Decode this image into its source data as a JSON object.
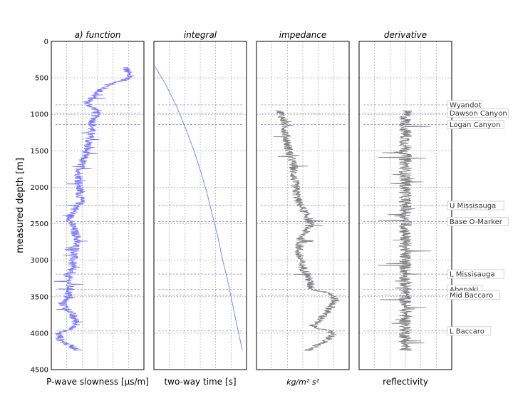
{
  "chart_data": {
    "type": "line",
    "ylabel": "measured depth [m]",
    "ylim": [
      0,
      4500
    ],
    "yticks": [
      0,
      500,
      1000,
      1500,
      2000,
      2500,
      3000,
      3500,
      4000,
      4500
    ],
    "depth_range": [
      350,
      4240
    ],
    "grid": true,
    "panels": [
      {
        "title": "a) function",
        "xlabel": "P-wave slowness [μs/m]",
        "color": "#7777ff",
        "series": {
          "name": "",
          "depth": [
            350,
            500,
            600,
            700,
            850,
            950,
            1100,
            1300,
            1500,
            1700,
            1800,
            2000,
            2200,
            2400,
            2500,
            2700,
            2900,
            3100,
            3200,
            3400,
            3500,
            3600,
            3700,
            3800,
            3900,
            4000,
            4100,
            4240
          ],
          "values": [
            0.8,
            0.85,
            0.62,
            0.5,
            0.38,
            0.5,
            0.45,
            0.42,
            0.38,
            0.32,
            0.3,
            0.3,
            0.32,
            0.2,
            0.22,
            0.28,
            0.25,
            0.22,
            0.18,
            0.2,
            0.18,
            0.12,
            0.2,
            0.25,
            0.28,
            0.08,
            0.1,
            0.3
          ]
        }
      },
      {
        "title": "integral",
        "xlabel": "two-way time [s]",
        "color": "#7777ff",
        "series": {
          "name": "",
          "depth": [
            350,
            600,
            900,
            1200,
            1500,
            1800,
            2100,
            2400,
            2700,
            3000,
            3300,
            3600,
            3900,
            4240
          ],
          "values": [
            0.0,
            0.12,
            0.24,
            0.34,
            0.43,
            0.51,
            0.58,
            0.64,
            0.7,
            0.75,
            0.81,
            0.86,
            0.91,
            0.97
          ]
        }
      },
      {
        "title": "impedance",
        "xlabel": "kg/m² s²",
        "color": "#7f7f7f",
        "series": {
          "name": "",
          "depth": [
            950,
            1100,
            1300,
            1500,
            1700,
            1800,
            2000,
            2200,
            2400,
            2500,
            2700,
            2900,
            3100,
            3200,
            3400,
            3450,
            3550,
            3650,
            3800,
            3900,
            4000,
            4100,
            4240
          ],
          "values": [
            0.25,
            0.3,
            0.32,
            0.35,
            0.4,
            0.4,
            0.42,
            0.45,
            0.55,
            0.58,
            0.48,
            0.45,
            0.5,
            0.55,
            0.6,
            0.8,
            0.85,
            0.8,
            0.7,
            0.6,
            0.85,
            0.75,
            0.55
          ]
        }
      },
      {
        "title": "derivative",
        "xlabel": "reflectivity",
        "color": "#7f7f7f",
        "series": {
          "name": "",
          "depth": [
            950,
            1500,
            2000,
            2500,
            3000,
            3500,
            4000,
            4240
          ],
          "values": [
            0.5,
            0.5,
            0.5,
            0.5,
            0.5,
            0.5,
            0.5,
            0.5
          ]
        }
      }
    ],
    "tops": [
      {
        "name": "Wyandot",
        "depth": 870
      },
      {
        "name": "Dawson Canyon",
        "depth": 985
      },
      {
        "name": "Logan Canyon",
        "depth": 1140
      },
      {
        "name": "U Missisauga",
        "depth": 2250
      },
      {
        "name": "Base O-Marker",
        "depth": 2470
      },
      {
        "name": "L Missisauga",
        "depth": 3190
      },
      {
        "name": "Abenaki",
        "depth": 3400
      },
      {
        "name": "Mid Baccaro",
        "depth": 3480
      },
      {
        "name": "L Baccaro",
        "depth": 3970
      }
    ]
  }
}
